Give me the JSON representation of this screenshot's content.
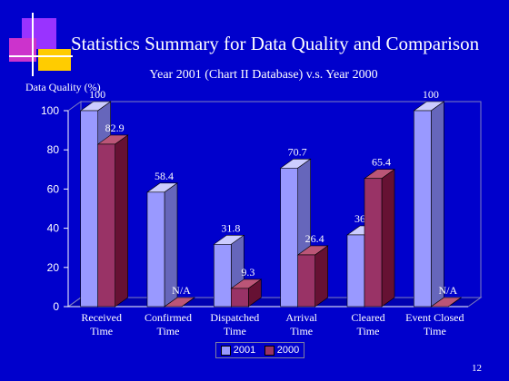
{
  "slide": {
    "title": "Statistics Summary for Data Quality and Comparison",
    "page_number": "12"
  },
  "colors": {
    "background": "#0000cc",
    "series_2001_front": "#9999ff",
    "series_2000_front": "#993366",
    "logo_purple": "#9933ff",
    "logo_magenta": "#cc33cc",
    "logo_yellow": "#ffcc00"
  },
  "chart_data": {
    "type": "bar",
    "title": "Year 2001 (Chart II Database) v.s. Year 2000",
    "ylabel": "Data Quality (%)",
    "xlabel": "",
    "ylim": [
      0,
      100
    ],
    "yticks": [
      0,
      20,
      40,
      60,
      80,
      100
    ],
    "categories": [
      [
        "Received",
        "Time"
      ],
      [
        "Confirmed",
        "Time"
      ],
      [
        "Dispatched",
        "Time"
      ],
      [
        "Arrival",
        "Time"
      ],
      [
        "Cleared",
        "Time"
      ],
      [
        "Event Closed",
        "Time"
      ]
    ],
    "series": [
      {
        "name": "2001",
        "values": [
          100,
          58.4,
          31.8,
          70.7,
          36.6,
          100
        ],
        "labels": [
          "100",
          "58.4",
          "31.8",
          "70.7",
          "36.6",
          "100"
        ]
      },
      {
        "name": "2000",
        "values": [
          82.9,
          0,
          9.3,
          26.4,
          65.4,
          0
        ],
        "labels": [
          "82.9",
          "N/A",
          "9.3",
          "26.4",
          "65.4",
          "N/A"
        ]
      }
    ],
    "grid": false,
    "legend_position": "bottom-center",
    "three_d": true
  }
}
